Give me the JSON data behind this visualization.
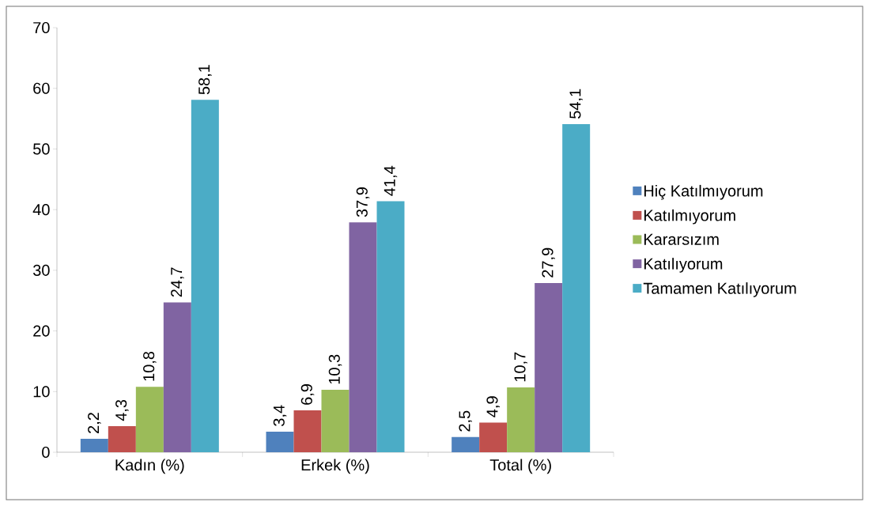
{
  "chart_data": {
    "type": "bar",
    "categories": [
      "Kadın (%)",
      "Erkek (%)",
      "Total (%)"
    ],
    "series": [
      {
        "name": "Hiç Katılmıyorum",
        "color": "#4f81bd",
        "values": [
          2.2,
          3.4,
          2.5
        ],
        "value_labels": [
          "2,2",
          "3,4",
          "2,5"
        ]
      },
      {
        "name": "Katılmıyorum",
        "color": "#c0504d",
        "values": [
          4.3,
          6.9,
          4.9
        ],
        "value_labels": [
          "4,3",
          "6,9",
          "4,9"
        ]
      },
      {
        "name": "Kararsızım",
        "color": "#9bbb59",
        "values": [
          10.8,
          10.3,
          10.7
        ],
        "value_labels": [
          "10,8",
          "10,3",
          "10,7"
        ]
      },
      {
        "name": "Katılıyorum",
        "color": "#8064a2",
        "values": [
          24.7,
          37.9,
          27.9
        ],
        "value_labels": [
          "24,7",
          "37,9",
          "27,9"
        ]
      },
      {
        "name": "Tamamen Katılıyorum",
        "color": "#4bacc6",
        "values": [
          58.1,
          41.4,
          54.1
        ],
        "value_labels": [
          "58,1",
          "41,4",
          "54,1"
        ]
      }
    ],
    "ylim": [
      0,
      70
    ],
    "yticks": [
      0,
      10,
      20,
      30,
      40,
      50,
      60,
      70
    ],
    "grid": false,
    "legend": "right"
  }
}
